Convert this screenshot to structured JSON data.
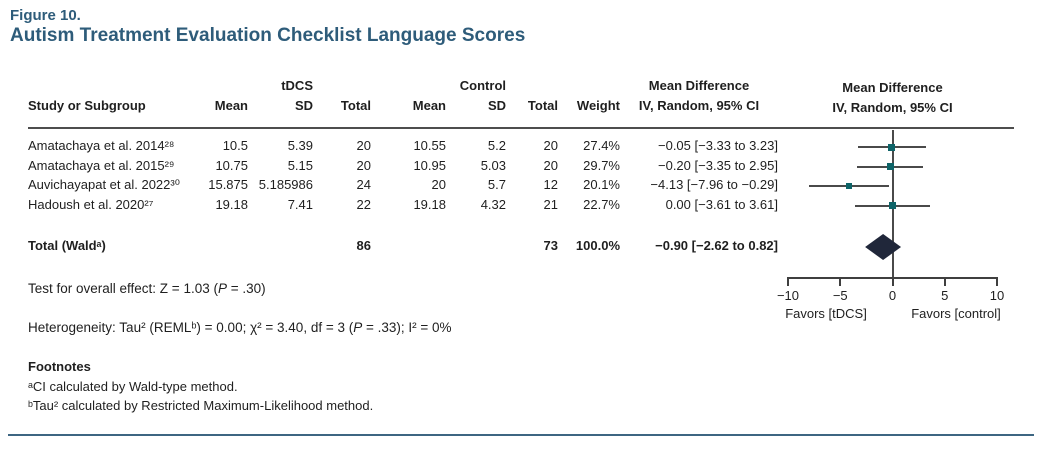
{
  "figure": {
    "label": "Figure 10.",
    "title": "Autism Treatment Evaluation Checklist Language Scores"
  },
  "table": {
    "headers": {
      "study": "Study or Subgroup",
      "group_tdcs": "tDCS",
      "group_control": "Control",
      "mean": "Mean",
      "sd": "SD",
      "total": "Total",
      "weight": "Weight",
      "md_line1": "Mean Difference",
      "md_line2": "IV, Random, 95% CI"
    },
    "rows": [
      {
        "study": "Amatachaya et al. 2014²⁸",
        "t_mean": "10.5",
        "t_sd": "5.39",
        "t_total": "20",
        "c_mean": "10.55",
        "c_sd": "5.2",
        "c_total": "20",
        "weight": "27.4%",
        "md": "−0.05 [−3.33 to 3.23]"
      },
      {
        "study": "Amatachaya et al. 2015²⁹",
        "t_mean": "10.75",
        "t_sd": "5.15",
        "t_total": "20",
        "c_mean": "10.95",
        "c_sd": "5.03",
        "c_total": "20",
        "weight": "29.7%",
        "md": "−0.20 [−3.35 to 2.95]"
      },
      {
        "study": "Auvichayapat et al. 2022³⁰",
        "t_mean": "15.875",
        "t_sd": "5.185986",
        "t_total": "24",
        "c_mean": "20",
        "c_sd": "5.7",
        "c_total": "12",
        "weight": "20.1%",
        "md": "−4.13 [−7.96 to −0.29]"
      },
      {
        "study": "Hadoush et al. 2020²⁷",
        "t_mean": "19.18",
        "t_sd": "7.41",
        "t_total": "22",
        "c_mean": "19.18",
        "c_sd": "4.32",
        "c_total": "21",
        "weight": "22.7%",
        "md": "0.00 [−3.61 to 3.61]"
      }
    ],
    "total_row": {
      "label": "Total (Waldᵃ)",
      "t_total": "86",
      "c_total": "73",
      "weight": "100.0%",
      "md": "−0.90 [−2.62 to 0.82]"
    }
  },
  "chart_data": {
    "type": "forest",
    "title": "Autism Treatment Evaluation Checklist Language Scores",
    "xlim": [
      -10,
      10
    ],
    "ticks": [
      -10,
      -5,
      0,
      5,
      10
    ],
    "zero_line": 0,
    "favors_left": "Favors [tDCS]",
    "favors_right": "Favors [control]",
    "studies": [
      {
        "name": "Amatachaya et al. 2014",
        "mean": -0.05,
        "ci_low": -3.33,
        "ci_high": 3.23,
        "weight_pct": 27.4
      },
      {
        "name": "Amatachaya et al. 2015",
        "mean": -0.2,
        "ci_low": -3.35,
        "ci_high": 2.95,
        "weight_pct": 29.7
      },
      {
        "name": "Auvichayapat et al. 2022",
        "mean": -4.13,
        "ci_low": -7.96,
        "ci_high": -0.29,
        "weight_pct": 20.1
      },
      {
        "name": "Hadoush et al. 2020",
        "mean": 0.0,
        "ci_low": -3.61,
        "ci_high": 3.61,
        "weight_pct": 22.7
      }
    ],
    "total": {
      "name": "Total (Wald)",
      "mean": -0.9,
      "ci_low": -2.62,
      "ci_high": 0.82,
      "weight_pct": 100.0
    }
  },
  "stats": {
    "overall": {
      "pre": "Test for overall effect: Z = 1.03 (",
      "p": "P",
      "post": " = .30)"
    },
    "heterogeneity": {
      "pre": "Heterogeneity: Tau² (REMLᵇ) = 0.00; χ² = 3.40, df = 3 (",
      "p": "P",
      "post": " = .33); I² = 0%"
    }
  },
  "footnotes": {
    "heading": "Footnotes",
    "a": "ᵃCI calculated by Wald-type method.",
    "b": "ᵇTau² calculated by Restricted Maximum-Likelihood method."
  },
  "colors": {
    "title": "#2e5c7a",
    "marker": "#0e6468",
    "diamond": "#20273a",
    "ci_line": "#4a4a4a",
    "rule": "#4d4d4d",
    "bottom_rule": "#3d6682"
  }
}
